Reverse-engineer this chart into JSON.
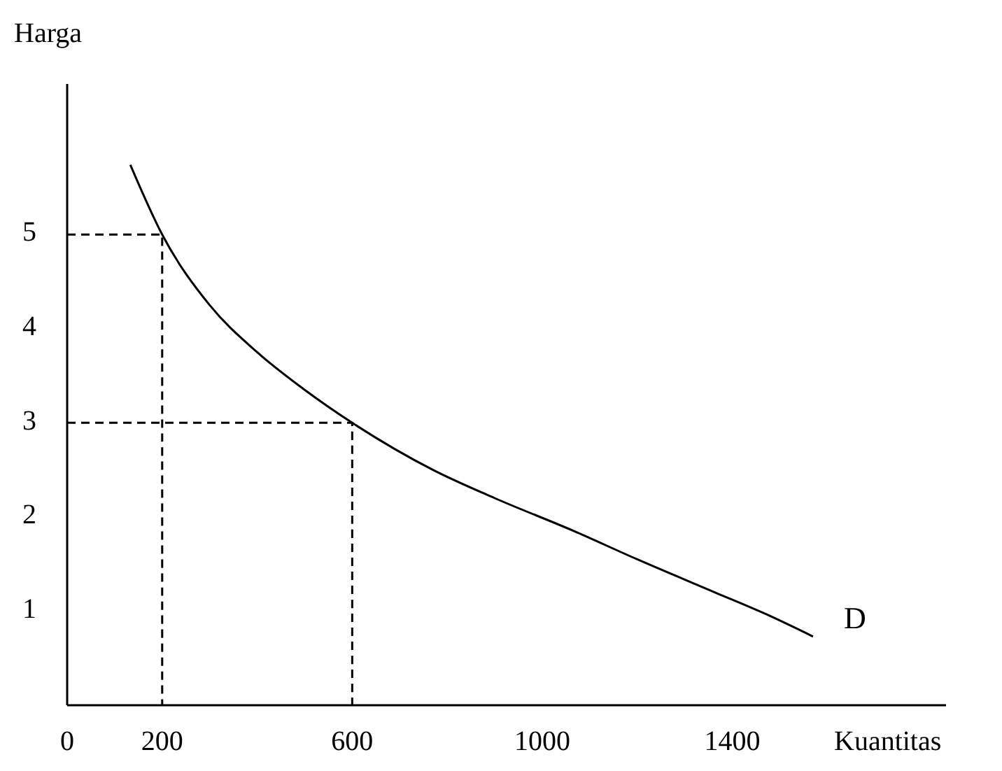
{
  "chart_data": {
    "type": "line",
    "xlabel": "Kuantitas",
    "ylabel": "Harga",
    "xlim": [
      0,
      1850
    ],
    "ylim": [
      0,
      6.6
    ],
    "xticks": [
      0,
      200,
      600,
      1000,
      1400
    ],
    "yticks": [
      1,
      2,
      3,
      4,
      5
    ],
    "grid": false,
    "series": [
      {
        "name": "D",
        "color": "#000000",
        "line_style": "solid",
        "x": [
          133,
          200,
          300,
          400,
          500,
          600,
          770,
          900,
          1067,
          1200,
          1363,
          1470,
          1570
        ],
        "values": [
          5.74,
          5,
          4.25,
          3.75,
          3.35,
          3,
          2.5,
          2.2,
          1.85,
          1.55,
          1.2,
          0.97,
          0.73
        ]
      },
      {
        "color": "#000000",
        "line_style": "dashed",
        "x": [
          0,
          200,
          200
        ],
        "values": [
          5,
          5,
          0
        ]
      },
      {
        "color": "#000000",
        "line_style": "dashed",
        "x": [
          0,
          600,
          600
        ],
        "values": [
          3,
          3,
          0
        ]
      }
    ]
  }
}
